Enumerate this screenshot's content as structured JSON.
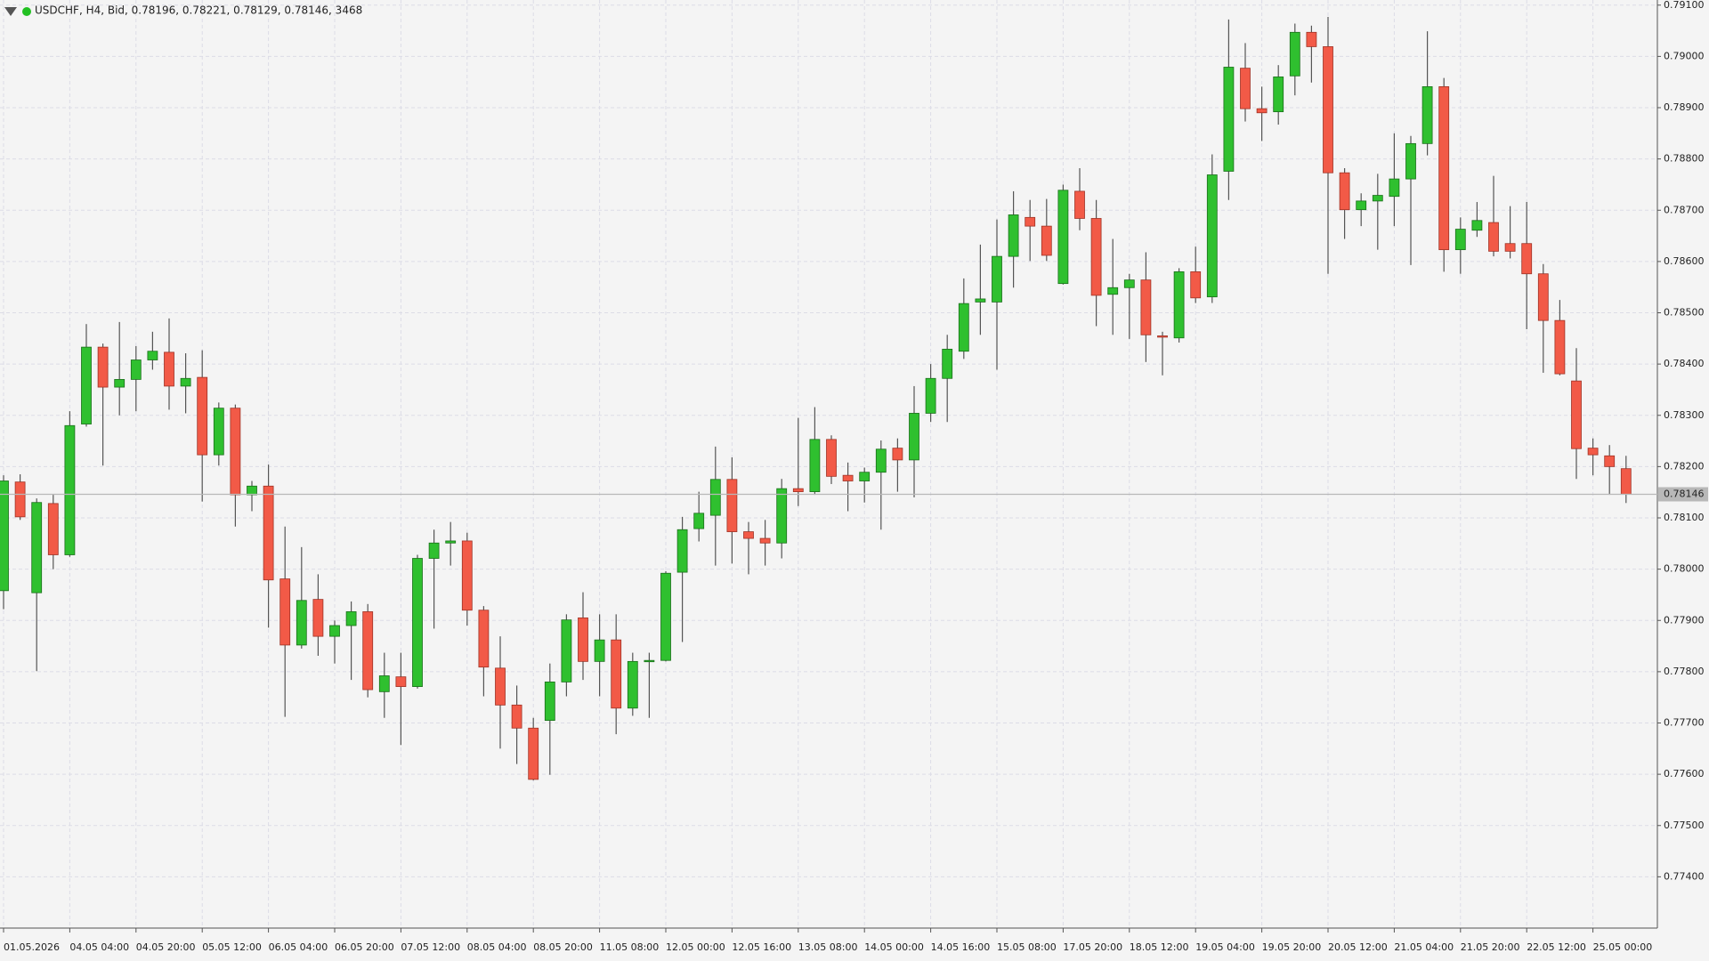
{
  "chart_data": {
    "type": "candlestick",
    "header": "USDCHF, H4, Bid, 0.78196, 0.78221, 0.78129, 0.78146, 3468",
    "up_color": "#2fc02f",
    "down_color": "#f25a47",
    "wick_color": "#555555",
    "grid": true,
    "bid": {
      "value": 0.78146,
      "label": "0.78146"
    },
    "ylim": [
      0.773,
      0.7911
    ],
    "yticks": [
      {
        "value": 0.791,
        "label": "0.79100"
      },
      {
        "value": 0.79,
        "label": "0.79000"
      },
      {
        "value": 0.789,
        "label": "0.78900"
      },
      {
        "value": 0.788,
        "label": "0.78800"
      },
      {
        "value": 0.787,
        "label": "0.78700"
      },
      {
        "value": 0.786,
        "label": "0.78600"
      },
      {
        "value": 0.785,
        "label": "0.78500"
      },
      {
        "value": 0.784,
        "label": "0.78400"
      },
      {
        "value": 0.783,
        "label": "0.78300"
      },
      {
        "value": 0.782,
        "label": "0.78200"
      },
      {
        "value": 0.781,
        "label": "0.78100"
      },
      {
        "value": 0.78,
        "label": "0.78000"
      },
      {
        "value": 0.779,
        "label": "0.77900"
      },
      {
        "value": 0.778,
        "label": "0.77800"
      },
      {
        "value": 0.777,
        "label": "0.77700"
      },
      {
        "value": 0.776,
        "label": "0.77600"
      },
      {
        "value": 0.775,
        "label": "0.77500"
      },
      {
        "value": 0.774,
        "label": "0.77400"
      }
    ],
    "categories": [
      "01.05.2026",
      null,
      null,
      null,
      "04.05 04:00",
      null,
      null,
      null,
      "04.05 20:00",
      null,
      null,
      null,
      "05.05 12:00",
      null,
      null,
      null,
      "06.05 04:00",
      null,
      null,
      null,
      "06.05 20:00",
      null,
      null,
      null,
      "07.05 12:00",
      null,
      null,
      null,
      "08.05 04:00",
      null,
      null,
      null,
      "08.05 20:00",
      null,
      null,
      null,
      "11.05 08:00",
      null,
      null,
      null,
      "12.05 00:00",
      null,
      null,
      null,
      "12.05 16:00",
      null,
      null,
      null,
      "13.05 08:00",
      null,
      null,
      null,
      "14.05 00:00",
      null,
      null,
      null,
      "14.05 16:00",
      null,
      null,
      null,
      "15.05 08:00",
      null,
      null,
      null,
      "17.05 20:00",
      null,
      null,
      null,
      "18.05 12:00",
      null,
      null,
      null,
      "19.05 04:00",
      null,
      null,
      null,
      "19.05 20:00",
      null,
      null,
      null,
      "20.05 12:00",
      null,
      null,
      null,
      "21.05 04:00",
      null,
      null,
      null,
      "21.05 20:00",
      null,
      null,
      null,
      "22.05 12:00",
      null,
      null,
      null,
      "25.05 00:00",
      null,
      null
    ],
    "values": [
      [
        0.77958,
        0.78183,
        0.77922,
        0.78172
      ],
      [
        0.7817,
        0.78185,
        0.78096,
        0.78102
      ],
      [
        0.77954,
        0.78138,
        0.77801,
        0.7813
      ],
      [
        0.78128,
        0.78145,
        0.78,
        0.78028
      ],
      [
        0.78028,
        0.78308,
        0.78024,
        0.7828
      ],
      [
        0.78283,
        0.78478,
        0.78278,
        0.78433
      ],
      [
        0.78433,
        0.7844,
        0.78202,
        0.78355
      ],
      [
        0.78355,
        0.78482,
        0.783,
        0.7837
      ],
      [
        0.7837,
        0.78435,
        0.78308,
        0.78408
      ],
      [
        0.78408,
        0.78463,
        0.78389,
        0.78425
      ],
      [
        0.78423,
        0.78489,
        0.78311,
        0.78357
      ],
      [
        0.78357,
        0.78421,
        0.78304,
        0.78372
      ],
      [
        0.78374,
        0.78427,
        0.78132,
        0.78223
      ],
      [
        0.78223,
        0.78325,
        0.78202,
        0.78314
      ],
      [
        0.78314,
        0.78321,
        0.78083,
        0.78145
      ],
      [
        0.78145,
        0.78172,
        0.78113,
        0.78162
      ],
      [
        0.78162,
        0.78204,
        0.77886,
        0.77979
      ],
      [
        0.77981,
        0.78083,
        0.77712,
        0.77852
      ],
      [
        0.77852,
        0.78043,
        0.77845,
        0.77939
      ],
      [
        0.77941,
        0.7799,
        0.77831,
        0.77869
      ],
      [
        0.77869,
        0.779,
        0.77816,
        0.7789
      ],
      [
        0.7789,
        0.77937,
        0.77784,
        0.77917
      ],
      [
        0.77917,
        0.77932,
        0.7775,
        0.77765
      ],
      [
        0.77761,
        0.77837,
        0.7771,
        0.77792
      ],
      [
        0.7779,
        0.77837,
        0.77657,
        0.77771
      ],
      [
        0.77771,
        0.78028,
        0.77767,
        0.78021
      ],
      [
        0.78021,
        0.78077,
        0.77884,
        0.78051
      ],
      [
        0.78051,
        0.78092,
        0.78007,
        0.78055
      ],
      [
        0.78055,
        0.78071,
        0.7789,
        0.7792
      ],
      [
        0.7792,
        0.77928,
        0.77752,
        0.77809
      ],
      [
        0.77807,
        0.77869,
        0.7765,
        0.77735
      ],
      [
        0.77735,
        0.77773,
        0.7762,
        0.7769
      ],
      [
        0.7769,
        0.7771,
        0.77588,
        0.7759
      ],
      [
        0.77705,
        0.77816,
        0.77599,
        0.7778
      ],
      [
        0.7778,
        0.77912,
        0.77752,
        0.77901
      ],
      [
        0.77905,
        0.77955,
        0.77784,
        0.7782
      ],
      [
        0.7782,
        0.77912,
        0.77752,
        0.77862
      ],
      [
        0.77862,
        0.77912,
        0.77678,
        0.77729
      ],
      [
        0.77729,
        0.77837,
        0.77714,
        0.7782
      ],
      [
        0.7782,
        0.77837,
        0.7771,
        0.77822
      ],
      [
        0.77822,
        0.77996,
        0.7782,
        0.77992
      ],
      [
        0.77994,
        0.78102,
        0.77858,
        0.78077
      ],
      [
        0.78079,
        0.78151,
        0.78054,
        0.78109
      ],
      [
        0.78105,
        0.78239,
        0.78007,
        0.78175
      ],
      [
        0.78175,
        0.78218,
        0.78011,
        0.78073
      ],
      [
        0.78073,
        0.78092,
        0.7799,
        0.7806
      ],
      [
        0.7806,
        0.78096,
        0.78007,
        0.78051
      ],
      [
        0.78051,
        0.78176,
        0.78021,
        0.78157
      ],
      [
        0.78157,
        0.78295,
        0.78123,
        0.78151
      ],
      [
        0.78151,
        0.78316,
        0.78145,
        0.78253
      ],
      [
        0.78253,
        0.78261,
        0.78166,
        0.78181
      ],
      [
        0.78183,
        0.78208,
        0.78113,
        0.78172
      ],
      [
        0.78172,
        0.78198,
        0.7813,
        0.78189
      ],
      [
        0.78189,
        0.78251,
        0.78077,
        0.78234
      ],
      [
        0.78236,
        0.78255,
        0.78151,
        0.78213
      ],
      [
        0.78213,
        0.78357,
        0.7814,
        0.78304
      ],
      [
        0.78304,
        0.784,
        0.78287,
        0.78372
      ],
      [
        0.78372,
        0.78457,
        0.78287,
        0.78429
      ],
      [
        0.78425,
        0.78567,
        0.7841,
        0.78518
      ],
      [
        0.78521,
        0.78633,
        0.78457,
        0.78527
      ],
      [
        0.78521,
        0.78682,
        0.78389,
        0.7861
      ],
      [
        0.7861,
        0.78737,
        0.78549,
        0.78691
      ],
      [
        0.78686,
        0.7872,
        0.78601,
        0.78669
      ],
      [
        0.78669,
        0.78722,
        0.78601,
        0.78612
      ],
      [
        0.78557,
        0.7875,
        0.78555,
        0.78739
      ],
      [
        0.78737,
        0.78782,
        0.78661,
        0.78684
      ],
      [
        0.78684,
        0.7872,
        0.78474,
        0.78534
      ],
      [
        0.78536,
        0.78644,
        0.78457,
        0.78549
      ],
      [
        0.78549,
        0.78576,
        0.78449,
        0.78564
      ],
      [
        0.78564,
        0.78618,
        0.78404,
        0.78457
      ],
      [
        0.78455,
        0.78463,
        0.78378,
        0.78453
      ],
      [
        0.78451,
        0.78587,
        0.78442,
        0.7858
      ],
      [
        0.7858,
        0.78629,
        0.78519,
        0.78529
      ],
      [
        0.78531,
        0.78809,
        0.78519,
        0.78769
      ],
      [
        0.78776,
        0.79072,
        0.7872,
        0.78979
      ],
      [
        0.78977,
        0.79026,
        0.78873,
        0.78898
      ],
      [
        0.78898,
        0.78941,
        0.78835,
        0.7889
      ],
      [
        0.78892,
        0.78983,
        0.78867,
        0.7896
      ],
      [
        0.78962,
        0.79064,
        0.78924,
        0.79047
      ],
      [
        0.79047,
        0.7906,
        0.78949,
        0.79019
      ],
      [
        0.79019,
        0.79077,
        0.78576,
        0.78773
      ],
      [
        0.78773,
        0.78782,
        0.78644,
        0.78701
      ],
      [
        0.78701,
        0.78733,
        0.78669,
        0.78718
      ],
      [
        0.78718,
        0.78771,
        0.78623,
        0.78729
      ],
      [
        0.78727,
        0.7885,
        0.78669,
        0.78761
      ],
      [
        0.78761,
        0.78845,
        0.78593,
        0.7883
      ],
      [
        0.7883,
        0.79049,
        0.78807,
        0.78941
      ],
      [
        0.78941,
        0.78958,
        0.7858,
        0.78623
      ],
      [
        0.78623,
        0.78686,
        0.78576,
        0.78663
      ],
      [
        0.78661,
        0.78716,
        0.78648,
        0.7868
      ],
      [
        0.78676,
        0.78767,
        0.7861,
        0.7862
      ],
      [
        0.78635,
        0.78708,
        0.78606,
        0.7862
      ],
      [
        0.78635,
        0.78716,
        0.78468,
        0.78576
      ],
      [
        0.78576,
        0.78595,
        0.78383,
        0.78485
      ],
      [
        0.78485,
        0.78525,
        0.78378,
        0.78381
      ],
      [
        0.78367,
        0.78431,
        0.78176,
        0.78235
      ],
      [
        0.78236,
        0.78255,
        0.78183,
        0.78223
      ],
      [
        0.78221,
        0.78242,
        0.78145,
        0.782
      ],
      [
        0.78196,
        0.78221,
        0.78129,
        0.78146
      ]
    ]
  }
}
